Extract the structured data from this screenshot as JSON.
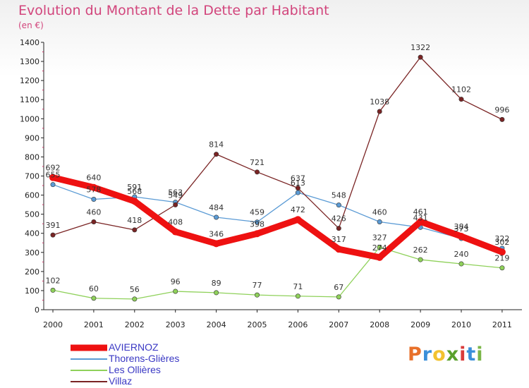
{
  "title": "Evolution du Montant de la Dette par Habitant",
  "unit": "(en €)",
  "logo": {
    "text": "Proxiti",
    "colors": [
      "#e8702a",
      "#3a8fd9",
      "#f2c230",
      "#5aa02c",
      "#d93b3b",
      "#3a8fd9",
      "#7ab648"
    ]
  },
  "chart_data": {
    "type": "line",
    "title": "Evolution du Montant de la Dette par Habitant",
    "ylabel": "(en €)",
    "xlabel": "",
    "categories": [
      "2000",
      "2001",
      "2002",
      "2003",
      "2004",
      "2005",
      "2006",
      "2007",
      "2008",
      "2009",
      "2010",
      "2011"
    ],
    "ylim": [
      0,
      1400
    ],
    "yticks": [
      0,
      100,
      200,
      300,
      400,
      500,
      600,
      700,
      800,
      900,
      1000,
      1100,
      1200,
      1300,
      1400
    ],
    "grid": false,
    "legend_position": "bottom-left",
    "series": [
      {
        "name": "AVIERNOZ",
        "color": "#ee1111",
        "values": [
          692,
          640,
          568,
          408,
          346,
          398,
          472,
          317,
          274,
          461,
          384,
          302
        ],
        "labels": [
          "692",
          "640",
          "568",
          "408",
          "346",
          "398",
          "472",
          "317",
          "274",
          "461",
          "384",
          "302"
        ]
      },
      {
        "name": "Thorens-Glières",
        "color": "#5b9bd5",
        "values": [
          655,
          578,
          591,
          563,
          484,
          459,
          613,
          548,
          460,
          431,
          373,
          322
        ],
        "labels": [
          "655",
          "578",
          "591",
          "563",
          "484",
          "459",
          "613",
          "548",
          "460",
          "431",
          "373",
          "322"
        ]
      },
      {
        "name": "Les Ollières",
        "color": "#8fd15a",
        "values": [
          102,
          60,
          56,
          96,
          89,
          77,
          71,
          67,
          327,
          262,
          240,
          219
        ],
        "labels": [
          "102",
          "60",
          "56",
          "96",
          "89",
          "77",
          "71",
          "67",
          "327",
          "262",
          "240",
          "219"
        ]
      },
      {
        "name": "Villaz",
        "color": "#7a2424",
        "values": [
          391,
          460,
          418,
          549,
          814,
          721,
          637,
          426,
          1038,
          1322,
          1102,
          996
        ],
        "labels": [
          "391",
          "460",
          "418",
          "549",
          "814",
          "721",
          "637",
          "426",
          "1038",
          "1322",
          "1102",
          "996"
        ]
      }
    ]
  }
}
